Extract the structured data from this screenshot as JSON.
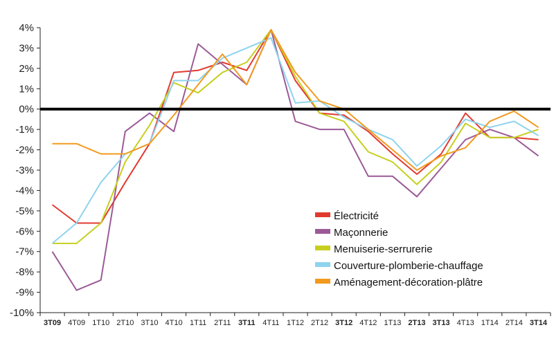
{
  "chart_data": {
    "type": "line",
    "title": "",
    "xlabel": "",
    "ylabel": "",
    "ylim": [
      -10,
      4
    ],
    "yticks": [
      {
        "value": 4,
        "label": "4%"
      },
      {
        "value": 3,
        "label": "3%"
      },
      {
        "value": 2,
        "label": "2%"
      },
      {
        "value": 1,
        "label": "1%"
      },
      {
        "value": 0,
        "label": "0%"
      },
      {
        "value": -1,
        "label": "-1%"
      },
      {
        "value": -2,
        "label": "-2%"
      },
      {
        "value": -3,
        "label": "-3%"
      },
      {
        "value": -4,
        "label": "-4%"
      },
      {
        "value": -5,
        "label": "-5%"
      },
      {
        "value": -6,
        "label": "-6%"
      },
      {
        "value": -7,
        "label": "-7%"
      },
      {
        "value": -8,
        "label": "-8%"
      },
      {
        "value": -9,
        "label": "-9%"
      },
      {
        "value": -10,
        "label": "-10%"
      }
    ],
    "categories": [
      "3T09",
      "4T09",
      "1T10",
      "2T10",
      "3T10",
      "4T10",
      "1T11",
      "2T11",
      "3T11",
      "4T11",
      "1T12",
      "2T12",
      "3T12",
      "4T12",
      "1T13",
      "2T13",
      "3T13",
      "4T13",
      "1T14",
      "2T14",
      "3T14"
    ],
    "bold_categories": [
      "3T09",
      "3T11",
      "3T12",
      "2T13",
      "3T13",
      "3T14"
    ],
    "grid": false,
    "legend_position": "bottom-right",
    "series": [
      {
        "name": "Électricité",
        "color": "#e03a2f",
        "values": [
          -4.7,
          -5.6,
          -5.6,
          -3.6,
          -1.7,
          1.8,
          1.9,
          2.3,
          1.9,
          3.9,
          1.4,
          -0.2,
          -0.3,
          -1.1,
          -2.2,
          -3.2,
          -2.2,
          -0.2,
          -1.4,
          -1.4,
          -1.5
        ]
      },
      {
        "name": "Maçonnerie",
        "color": "#9b5a97",
        "values": [
          -7.0,
          -8.9,
          -8.4,
          -1.1,
          -0.2,
          -1.1,
          3.2,
          2.2,
          1.2,
          3.9,
          -0.6,
          -1.0,
          -1.0,
          -3.3,
          -3.3,
          -4.3,
          -2.9,
          -1.5,
          -1.0,
          -1.4,
          -2.3
        ]
      },
      {
        "name": "Menuiserie-serrurerie",
        "color": "#c6cf1f",
        "values": [
          -6.6,
          -6.6,
          -5.6,
          -2.6,
          -0.8,
          1.3,
          0.8,
          1.8,
          2.3,
          3.9,
          1.6,
          -0.2,
          -0.6,
          -2.1,
          -2.6,
          -3.7,
          -2.6,
          -0.7,
          -1.4,
          -1.4,
          -1.0
        ]
      },
      {
        "name": "Couverture-plomberie-chauffage",
        "color": "#8fd3ee",
        "values": [
          -6.6,
          -5.6,
          -3.6,
          -2.2,
          -1.7,
          1.4,
          1.4,
          2.5,
          3.0,
          3.5,
          0.3,
          0.4,
          -0.4,
          -1.0,
          -1.5,
          -2.8,
          -1.8,
          -0.5,
          -0.9,
          -0.6,
          -1.3
        ]
      },
      {
        "name": "Aménagement-décoration-plâtre",
        "color": "#f29a1e",
        "values": [
          -1.7,
          -1.7,
          -2.2,
          -2.2,
          -1.7,
          -0.3,
          1.2,
          2.7,
          1.2,
          3.9,
          1.8,
          0.4,
          0.0,
          -1.0,
          -2.0,
          -3.0,
          -2.3,
          -1.9,
          -0.6,
          -0.1,
          -0.9
        ]
      }
    ]
  }
}
